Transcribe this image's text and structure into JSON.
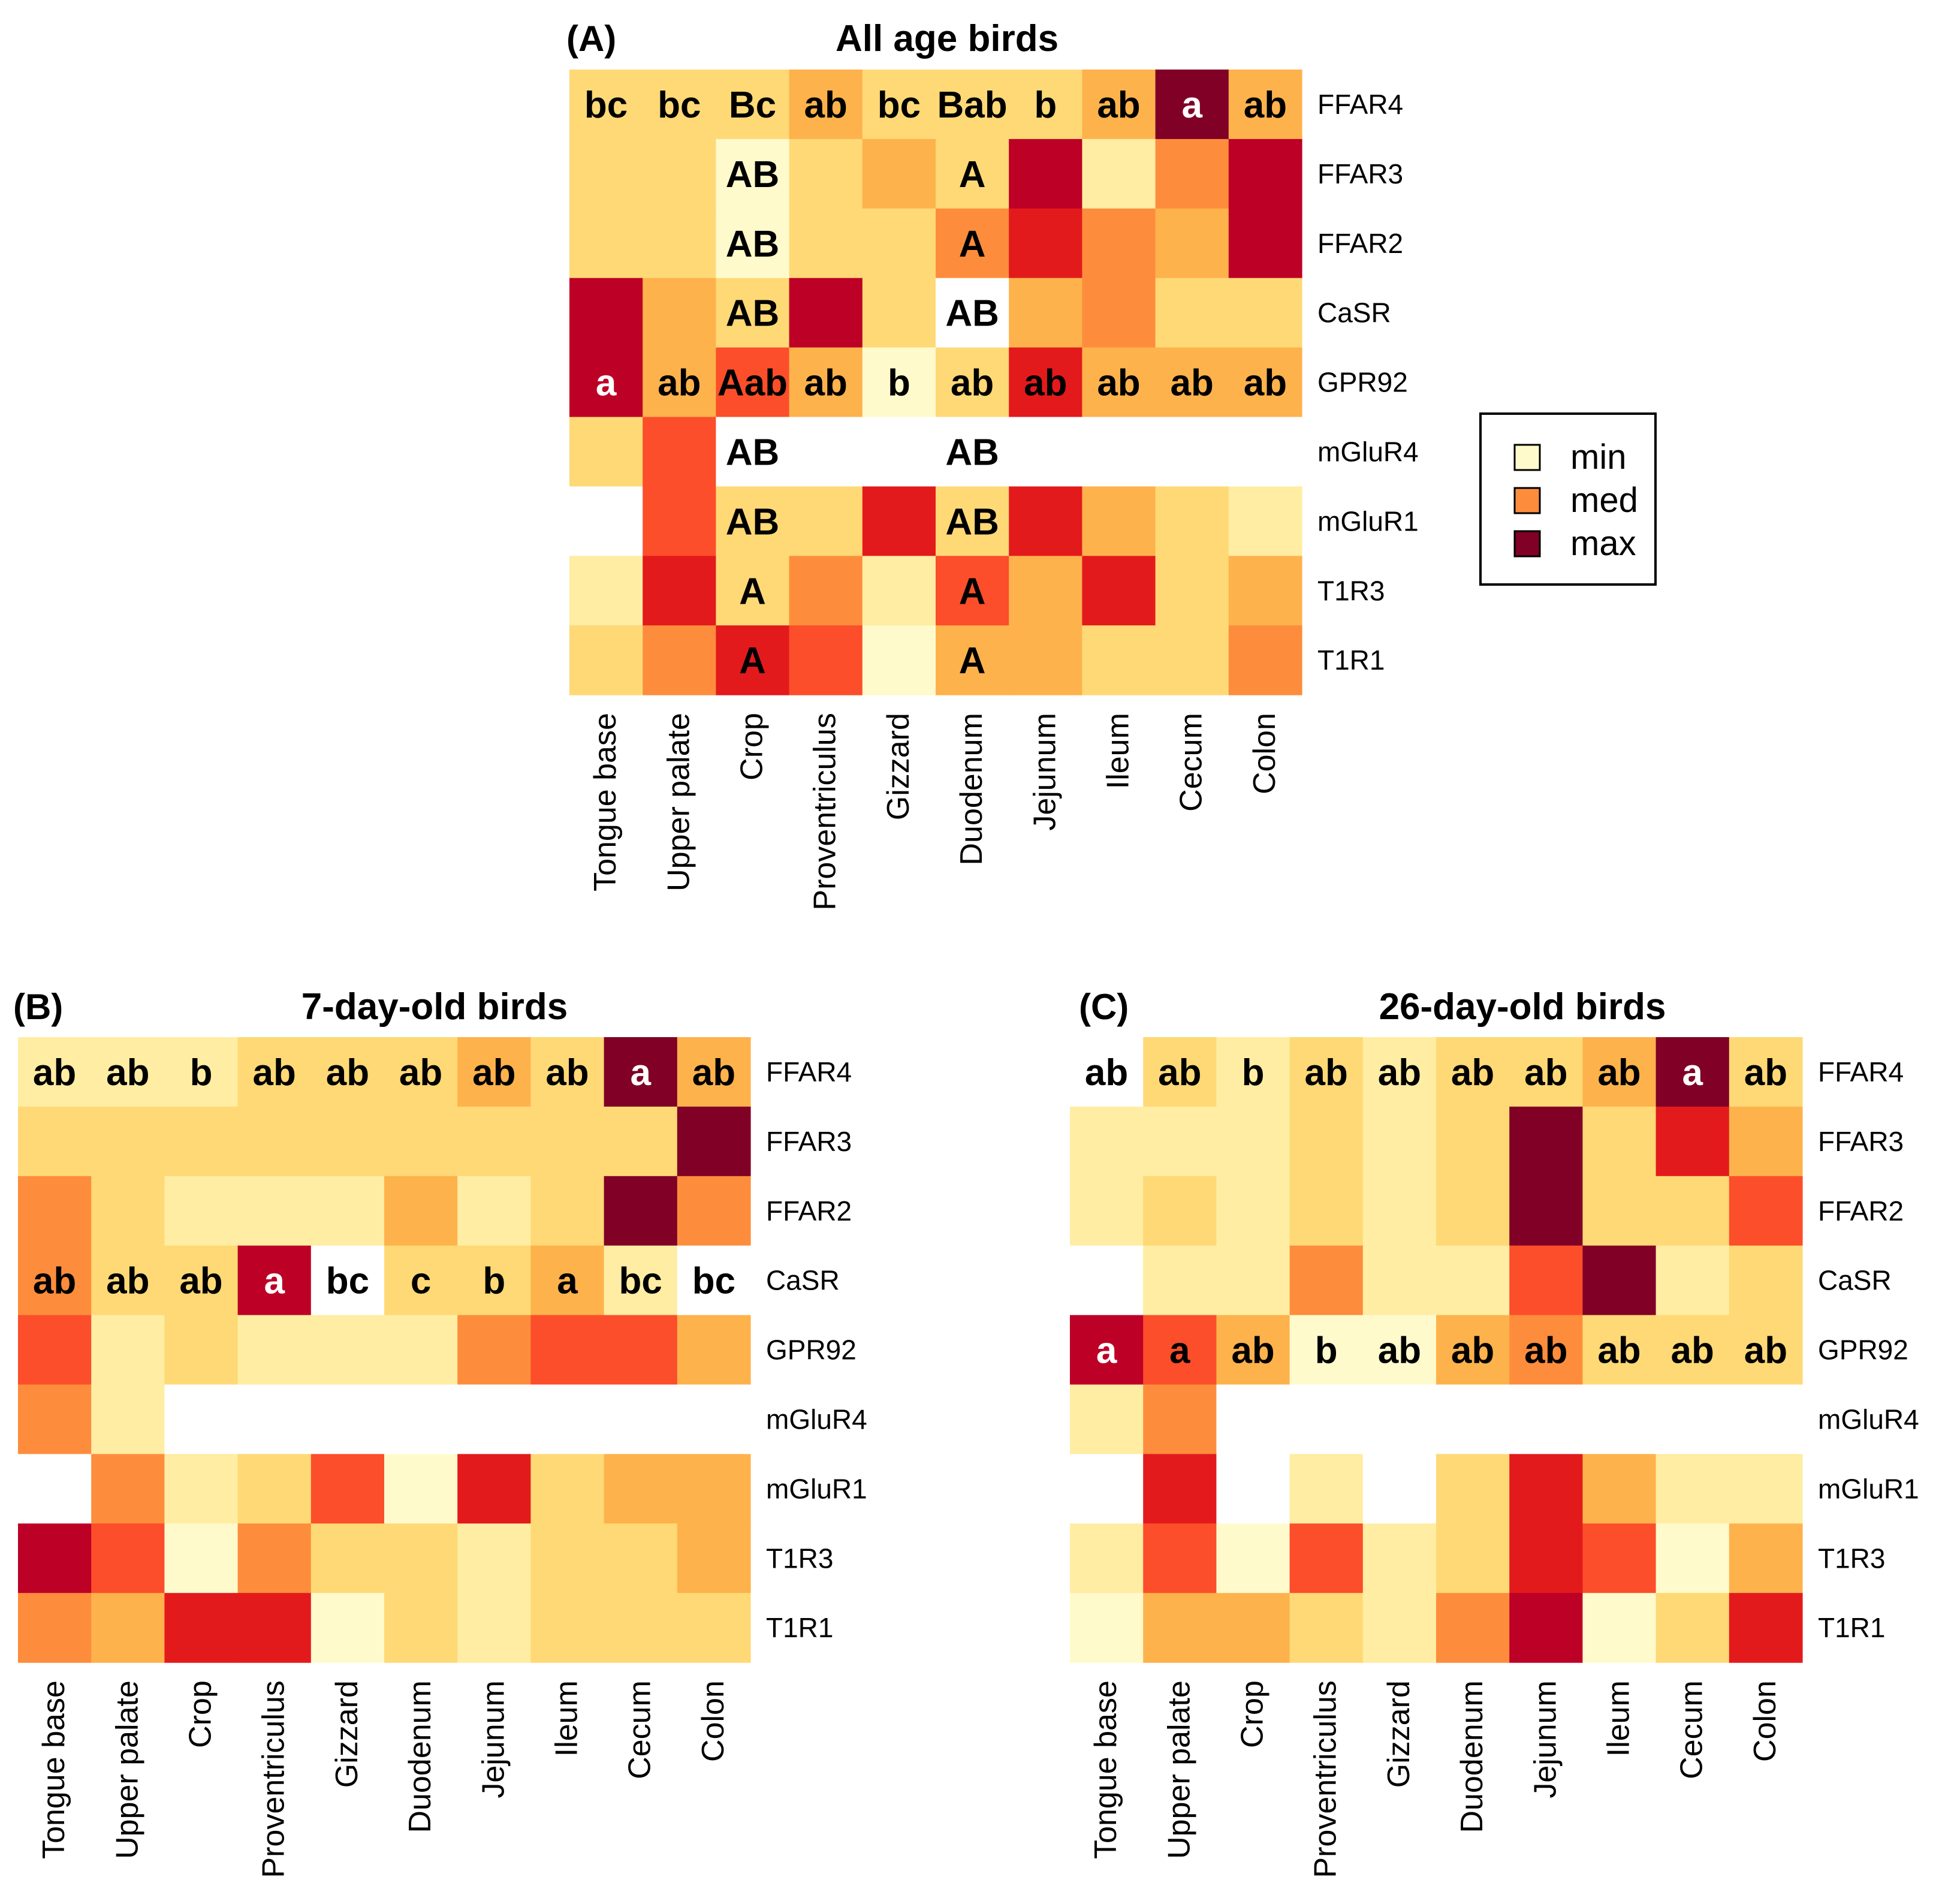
{
  "colors": {
    "c0": "#ffffff",
    "c1": "#fffacc",
    "c2": "#feeda3",
    "c3": "#fed976",
    "c4": "#feb24c",
    "c5": "#fd8d3c",
    "c6": "#fc4e2a",
    "c7": "#e31a1c",
    "c8": "#bd0026",
    "c9": "#800026"
  },
  "legend": {
    "entries": [
      {
        "label": "min",
        "color": "#fffacc"
      },
      {
        "label": "med",
        "color": "#fd8d3c"
      },
      {
        "label": "max",
        "color": "#800026"
      }
    ]
  },
  "chart_data": [
    {
      "type": "heatmap",
      "panel": "(A)",
      "title": "All age birds",
      "genes": [
        "FFAR4",
        "FFAR3",
        "FFAR2",
        "CaSR",
        "GPR92",
        "mGluR4",
        "mGluR1",
        "T1R3",
        "T1R1"
      ],
      "tissues": [
        "Tongue base",
        "Upper palate",
        "Crop",
        "Proventriculus",
        "Gizzard",
        "Duodenum",
        "Jejunum",
        "Ileum",
        "Cecum",
        "Colon"
      ],
      "levels": [
        [
          3,
          3,
          3,
          4,
          3,
          3,
          3,
          4,
          9,
          4
        ],
        [
          3,
          3,
          1,
          3,
          4,
          3,
          8,
          2,
          5,
          8
        ],
        [
          3,
          3,
          1,
          3,
          3,
          5,
          7,
          5,
          4,
          8
        ],
        [
          8,
          4,
          3,
          8,
          3,
          0,
          4,
          5,
          3,
          3
        ],
        [
          8,
          4,
          6,
          4,
          1,
          3,
          7,
          4,
          4,
          4
        ],
        [
          3,
          6,
          0,
          0,
          0,
          0,
          0,
          0,
          0,
          0
        ],
        [
          0,
          6,
          3,
          3,
          7,
          3,
          7,
          4,
          3,
          2
        ],
        [
          2,
          7,
          3,
          5,
          2,
          6,
          4,
          7,
          3,
          4
        ],
        [
          3,
          5,
          7,
          6,
          1,
          4,
          4,
          3,
          3,
          5
        ]
      ],
      "labels": [
        [
          "bc",
          "bc",
          "Bc",
          "ab",
          "bc",
          "Bab",
          "b",
          "ab",
          "a",
          "ab"
        ],
        [
          "",
          "",
          "AB",
          "",
          "",
          "A",
          "",
          "",
          "",
          ""
        ],
        [
          "",
          "",
          "AB",
          "",
          "",
          "A",
          "",
          "",
          "",
          ""
        ],
        [
          "",
          "",
          "AB",
          "",
          "",
          "AB",
          "",
          "",
          "",
          ""
        ],
        [
          "a",
          "ab",
          "Aab",
          "ab",
          "b",
          "ab",
          "ab",
          "ab",
          "ab",
          "ab"
        ],
        [
          "",
          "",
          "AB",
          "",
          "",
          "AB",
          "",
          "",
          "",
          ""
        ],
        [
          "",
          "",
          "AB",
          "",
          "",
          "AB",
          "",
          "",
          "",
          ""
        ],
        [
          "",
          "",
          "A",
          "",
          "",
          "A",
          "",
          "",
          "",
          ""
        ],
        [
          "",
          "",
          "A",
          "",
          "",
          "A",
          "",
          "",
          "",
          ""
        ]
      ]
    },
    {
      "type": "heatmap",
      "panel": "(B)",
      "title": "7-day-old birds",
      "genes": [
        "FFAR4",
        "FFAR3",
        "FFAR2",
        "CaSR",
        "GPR92",
        "mGluR4",
        "mGluR1",
        "T1R3",
        "T1R1"
      ],
      "tissues": [
        "Tongue base",
        "Upper palate",
        "Crop",
        "Proventriculus",
        "Gizzard",
        "Duodenum",
        "Jejunum",
        "Ileum",
        "Cecum",
        "Colon"
      ],
      "levels": [
        [
          2,
          2,
          2,
          3,
          3,
          3,
          4,
          3,
          9,
          4
        ],
        [
          3,
          3,
          3,
          3,
          3,
          3,
          3,
          3,
          3,
          9
        ],
        [
          5,
          3,
          2,
          2,
          2,
          4,
          2,
          3,
          9,
          5
        ],
        [
          5,
          3,
          3,
          8,
          0,
          3,
          3,
          4,
          2,
          0
        ],
        [
          6,
          2,
          3,
          2,
          2,
          2,
          5,
          6,
          6,
          4
        ],
        [
          5,
          2,
          0,
          0,
          0,
          0,
          0,
          0,
          0,
          0
        ],
        [
          0,
          5,
          2,
          3,
          6,
          1,
          7,
          3,
          4,
          4
        ],
        [
          8,
          6,
          1,
          5,
          3,
          3,
          2,
          3,
          3,
          4
        ],
        [
          5,
          4,
          7,
          7,
          1,
          3,
          2,
          3,
          3,
          3
        ]
      ],
      "labels": [
        [
          "ab",
          "ab",
          "b",
          "ab",
          "ab",
          "ab",
          "ab",
          "ab",
          "a",
          "ab"
        ],
        [
          "",
          "",
          "",
          "",
          "",
          "",
          "",
          "",
          "",
          ""
        ],
        [
          "",
          "",
          "",
          "",
          "",
          "",
          "",
          "",
          "",
          ""
        ],
        [
          "ab",
          "ab",
          "ab",
          "a",
          "bc",
          "c",
          "b",
          "a",
          "bc",
          "bc"
        ],
        [
          "",
          "",
          "",
          "",
          "",
          "",
          "",
          "",
          "",
          ""
        ],
        [
          "",
          "",
          "",
          "",
          "",
          "",
          "",
          "",
          "",
          ""
        ],
        [
          "",
          "",
          "",
          "",
          "",
          "",
          "",
          "",
          "",
          ""
        ],
        [
          "",
          "",
          "",
          "",
          "",
          "",
          "",
          "",
          "",
          ""
        ],
        [
          "",
          "",
          "",
          "",
          "",
          "",
          "",
          "",
          "",
          ""
        ]
      ]
    },
    {
      "type": "heatmap",
      "panel": "(C)",
      "title": "26-day-old birds",
      "genes": [
        "FFAR4",
        "FFAR3",
        "FFAR2",
        "CaSR",
        "GPR92",
        "mGluR4",
        "mGluR1",
        "T1R3",
        "T1R1"
      ],
      "tissues": [
        "Tongue base",
        "Upper palate",
        "Crop",
        "Proventriculus",
        "Gizzard",
        "Duodenum",
        "Jejunum",
        "Ileum",
        "Cecum",
        "Colon"
      ],
      "levels": [
        [
          0,
          3,
          2,
          3,
          2,
          3,
          3,
          4,
          9,
          3
        ],
        [
          2,
          2,
          2,
          3,
          2,
          3,
          9,
          3,
          7,
          4
        ],
        [
          2,
          3,
          2,
          3,
          2,
          3,
          9,
          3,
          3,
          6
        ],
        [
          0,
          2,
          2,
          5,
          2,
          2,
          6,
          9,
          2,
          3
        ],
        [
          8,
          6,
          4,
          1,
          1,
          4,
          5,
          3,
          3,
          3
        ],
        [
          2,
          5,
          0,
          0,
          0,
          0,
          0,
          0,
          0,
          0
        ],
        [
          0,
          7,
          0,
          2,
          0,
          3,
          7,
          4,
          2,
          2
        ],
        [
          2,
          6,
          1,
          6,
          2,
          3,
          7,
          6,
          1,
          4
        ],
        [
          1,
          4,
          4,
          3,
          2,
          5,
          8,
          1,
          3,
          7
        ]
      ],
      "labels": [
        [
          "ab",
          "ab",
          "b",
          "ab",
          "ab",
          "ab",
          "ab",
          "ab",
          "a",
          "ab"
        ],
        [
          "",
          "",
          "",
          "",
          "",
          "",
          "",
          "",
          "",
          ""
        ],
        [
          "",
          "",
          "",
          "",
          "",
          "",
          "",
          "",
          "",
          ""
        ],
        [
          "",
          "",
          "",
          "",
          "",
          "",
          "",
          "",
          "",
          ""
        ],
        [
          "a",
          "a",
          "ab",
          "b",
          "ab",
          "ab",
          "ab",
          "ab",
          "ab",
          "ab"
        ],
        [
          "",
          "",
          "",
          "",
          "",
          "",
          "",
          "",
          "",
          ""
        ],
        [
          "",
          "",
          "",
          "",
          "",
          "",
          "",
          "",
          "",
          ""
        ],
        [
          "",
          "",
          "",
          "",
          "",
          "",
          "",
          "",
          "",
          ""
        ],
        [
          "",
          "",
          "",
          "",
          "",
          "",
          "",
          "",
          "",
          ""
        ]
      ]
    }
  ]
}
